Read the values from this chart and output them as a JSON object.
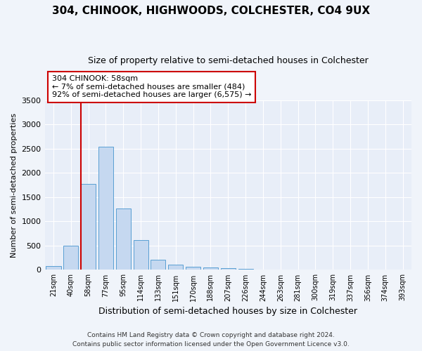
{
  "title": "304, CHINOOK, HIGHWOODS, COLCHESTER, CO4 9UX",
  "subtitle": "Size of property relative to semi-detached houses in Colchester",
  "xlabel": "Distribution of semi-detached houses by size in Colchester",
  "ylabel": "Number of semi-detached properties",
  "categories": [
    "21sqm",
    "40sqm",
    "58sqm",
    "77sqm",
    "95sqm",
    "114sqm",
    "133sqm",
    "151sqm",
    "170sqm",
    "188sqm",
    "207sqm",
    "226sqm",
    "244sqm",
    "263sqm",
    "281sqm",
    "300sqm",
    "319sqm",
    "337sqm",
    "356sqm",
    "374sqm",
    "393sqm"
  ],
  "values": [
    75,
    500,
    1780,
    2540,
    1260,
    620,
    215,
    105,
    70,
    55,
    30,
    18,
    10,
    6,
    4,
    3,
    2,
    1,
    1,
    0,
    0
  ],
  "bar_color": "#c5d8f0",
  "bar_edge_color": "#5a9fd4",
  "vline_x": 2,
  "vline_color": "#cc0000",
  "annotation_text": "304 CHINOOK: 58sqm\n← 7% of semi-detached houses are smaller (484)\n92% of semi-detached houses are larger (6,575) →",
  "annotation_box_color": "#ffffff",
  "annotation_box_edge": "#cc0000",
  "ylim": [
    0,
    3500
  ],
  "yticks": [
    0,
    500,
    1000,
    1500,
    2000,
    2500,
    3000,
    3500
  ],
  "footer1": "Contains HM Land Registry data © Crown copyright and database right 2024.",
  "footer2": "Contains public sector information licensed under the Open Government Licence v3.0.",
  "bg_color": "#f0f4fa",
  "plot_bg_color": "#e8eef8"
}
